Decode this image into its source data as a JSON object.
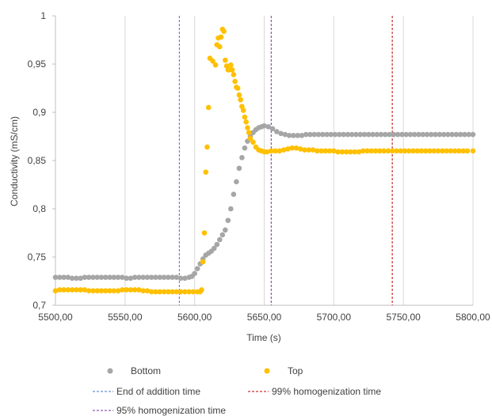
{
  "chart_data": {
    "type": "scatter",
    "title": "",
    "xlabel": "Time (s)",
    "ylabel": "Conductivity (mS/cm)",
    "xlim": [
      5500,
      5800
    ],
    "ylim": [
      0.7,
      1.0
    ],
    "x_ticks": [
      5500,
      5550,
      5600,
      5650,
      5700,
      5750,
      5800
    ],
    "x_tick_labels": [
      "5500,00",
      "5550,00",
      "5600,00",
      "5650,00",
      "5700,00",
      "5750,00",
      "5800,00"
    ],
    "y_ticks": [
      0.7,
      0.75,
      0.8,
      0.85,
      0.9,
      0.95,
      1.0
    ],
    "y_tick_labels": [
      "0,7",
      "0,75",
      "0,8",
      "0,85",
      "0,9",
      "0,95",
      "1"
    ],
    "grid": "vertical",
    "legend_position": "bottom",
    "series": [
      {
        "name": "Bottom",
        "color": "#a6a6a6",
        "points": [
          [
            5500,
            0.729
          ],
          [
            5503,
            0.729
          ],
          [
            5506,
            0.729
          ],
          [
            5509,
            0.729
          ],
          [
            5512,
            0.728
          ],
          [
            5515,
            0.728
          ],
          [
            5518,
            0.728
          ],
          [
            5521,
            0.729
          ],
          [
            5524,
            0.729
          ],
          [
            5527,
            0.729
          ],
          [
            5530,
            0.729
          ],
          [
            5533,
            0.729
          ],
          [
            5536,
            0.729
          ],
          [
            5539,
            0.729
          ],
          [
            5542,
            0.729
          ],
          [
            5545,
            0.729
          ],
          [
            5548,
            0.729
          ],
          [
            5551,
            0.728
          ],
          [
            5554,
            0.728
          ],
          [
            5557,
            0.729
          ],
          [
            5560,
            0.729
          ],
          [
            5563,
            0.729
          ],
          [
            5566,
            0.729
          ],
          [
            5569,
            0.729
          ],
          [
            5572,
            0.729
          ],
          [
            5575,
            0.729
          ],
          [
            5578,
            0.729
          ],
          [
            5581,
            0.729
          ],
          [
            5584,
            0.729
          ],
          [
            5587,
            0.729
          ],
          [
            5590,
            0.728
          ],
          [
            5593,
            0.728
          ],
          [
            5596,
            0.729
          ],
          [
            5598,
            0.73
          ],
          [
            5600,
            0.733
          ],
          [
            5602,
            0.738
          ],
          [
            5604,
            0.743
          ],
          [
            5606,
            0.748
          ],
          [
            5608,
            0.752
          ],
          [
            5610,
            0.754
          ],
          [
            5612,
            0.756
          ],
          [
            5614,
            0.759
          ],
          [
            5616,
            0.763
          ],
          [
            5618,
            0.768
          ],
          [
            5620,
            0.773
          ],
          [
            5622,
            0.778
          ],
          [
            5624,
            0.788
          ],
          [
            5626,
            0.8
          ],
          [
            5628,
            0.815
          ],
          [
            5630,
            0.828
          ],
          [
            5632,
            0.842
          ],
          [
            5634,
            0.853
          ],
          [
            5636,
            0.863
          ],
          [
            5638,
            0.87
          ],
          [
            5640,
            0.875
          ],
          [
            5642,
            0.879
          ],
          [
            5644,
            0.882
          ],
          [
            5646,
            0.884
          ],
          [
            5648,
            0.885
          ],
          [
            5650,
            0.886
          ],
          [
            5653,
            0.885
          ],
          [
            5656,
            0.883
          ],
          [
            5659,
            0.88
          ],
          [
            5662,
            0.878
          ],
          [
            5665,
            0.877
          ],
          [
            5668,
            0.876
          ],
          [
            5671,
            0.876
          ],
          [
            5674,
            0.876
          ],
          [
            5677,
            0.876
          ],
          [
            5680,
            0.877
          ],
          [
            5683,
            0.877
          ],
          [
            5686,
            0.877
          ],
          [
            5689,
            0.877
          ],
          [
            5692,
            0.877
          ],
          [
            5695,
            0.877
          ],
          [
            5698,
            0.877
          ],
          [
            5701,
            0.877
          ],
          [
            5704,
            0.877
          ],
          [
            5707,
            0.877
          ],
          [
            5710,
            0.877
          ],
          [
            5713,
            0.877
          ],
          [
            5716,
            0.877
          ],
          [
            5719,
            0.877
          ],
          [
            5722,
            0.877
          ],
          [
            5725,
            0.877
          ],
          [
            5728,
            0.877
          ],
          [
            5731,
            0.877
          ],
          [
            5734,
            0.877
          ],
          [
            5737,
            0.877
          ],
          [
            5740,
            0.877
          ],
          [
            5743,
            0.877
          ],
          [
            5746,
            0.877
          ],
          [
            5749,
            0.877
          ],
          [
            5752,
            0.877
          ],
          [
            5755,
            0.877
          ],
          [
            5758,
            0.877
          ],
          [
            5761,
            0.877
          ],
          [
            5764,
            0.877
          ],
          [
            5767,
            0.877
          ],
          [
            5770,
            0.877
          ],
          [
            5773,
            0.877
          ],
          [
            5776,
            0.877
          ],
          [
            5779,
            0.877
          ],
          [
            5782,
            0.877
          ],
          [
            5785,
            0.877
          ],
          [
            5788,
            0.877
          ],
          [
            5791,
            0.877
          ],
          [
            5794,
            0.877
          ],
          [
            5797,
            0.877
          ],
          [
            5800,
            0.877
          ]
        ]
      },
      {
        "name": "Top",
        "color": "#ffc000",
        "points": [
          [
            5500,
            0.715
          ],
          [
            5503,
            0.716
          ],
          [
            5506,
            0.716
          ],
          [
            5509,
            0.716
          ],
          [
            5512,
            0.716
          ],
          [
            5515,
            0.716
          ],
          [
            5518,
            0.716
          ],
          [
            5521,
            0.716
          ],
          [
            5524,
            0.715
          ],
          [
            5527,
            0.715
          ],
          [
            5530,
            0.715
          ],
          [
            5533,
            0.715
          ],
          [
            5536,
            0.715
          ],
          [
            5539,
            0.715
          ],
          [
            5542,
            0.715
          ],
          [
            5545,
            0.715
          ],
          [
            5548,
            0.716
          ],
          [
            5551,
            0.716
          ],
          [
            5554,
            0.716
          ],
          [
            5557,
            0.716
          ],
          [
            5560,
            0.716
          ],
          [
            5563,
            0.715
          ],
          [
            5566,
            0.715
          ],
          [
            5569,
            0.714
          ],
          [
            5572,
            0.714
          ],
          [
            5575,
            0.714
          ],
          [
            5578,
            0.714
          ],
          [
            5581,
            0.714
          ],
          [
            5584,
            0.714
          ],
          [
            5587,
            0.714
          ],
          [
            5590,
            0.714
          ],
          [
            5593,
            0.714
          ],
          [
            5596,
            0.714
          ],
          [
            5599,
            0.714
          ],
          [
            5602,
            0.714
          ],
          [
            5604,
            0.714
          ],
          [
            5605,
            0.716
          ],
          [
            5606,
            0.745
          ],
          [
            5607,
            0.775
          ],
          [
            5608,
            0.838
          ],
          [
            5609,
            0.864
          ],
          [
            5610,
            0.905
          ],
          [
            5611,
            0.956
          ],
          [
            5613,
            0.953
          ],
          [
            5615,
            0.949
          ],
          [
            5616,
            0.97
          ],
          [
            5617,
            0.977
          ],
          [
            5618,
            0.968
          ],
          [
            5619,
            0.978
          ],
          [
            5620,
            0.986
          ],
          [
            5621,
            0.984
          ],
          [
            5622,
            0.954
          ],
          [
            5623,
            0.948
          ],
          [
            5624,
            0.944
          ],
          [
            5625,
            0.944
          ],
          [
            5626,
            0.949
          ],
          [
            5627,
            0.944
          ],
          [
            5628,
            0.939
          ],
          [
            5629,
            0.932
          ],
          [
            5630,
            0.926
          ],
          [
            5631,
            0.925
          ],
          [
            5632,
            0.918
          ],
          [
            5633,
            0.913
          ],
          [
            5634,
            0.906
          ],
          [
            5635,
            0.902
          ],
          [
            5636,
            0.895
          ],
          [
            5637,
            0.89
          ],
          [
            5638,
            0.884
          ],
          [
            5639,
            0.879
          ],
          [
            5640,
            0.873
          ],
          [
            5642,
            0.869
          ],
          [
            5644,
            0.864
          ],
          [
            5646,
            0.861
          ],
          [
            5648,
            0.86
          ],
          [
            5650,
            0.859
          ],
          [
            5652,
            0.859
          ],
          [
            5655,
            0.86
          ],
          [
            5658,
            0.86
          ],
          [
            5661,
            0.86
          ],
          [
            5664,
            0.861
          ],
          [
            5667,
            0.862
          ],
          [
            5670,
            0.863
          ],
          [
            5673,
            0.863
          ],
          [
            5676,
            0.862
          ],
          [
            5679,
            0.861
          ],
          [
            5682,
            0.861
          ],
          [
            5685,
            0.861
          ],
          [
            5688,
            0.86
          ],
          [
            5691,
            0.86
          ],
          [
            5694,
            0.86
          ],
          [
            5697,
            0.86
          ],
          [
            5700,
            0.86
          ],
          [
            5703,
            0.859
          ],
          [
            5706,
            0.859
          ],
          [
            5709,
            0.859
          ],
          [
            5712,
            0.859
          ],
          [
            5715,
            0.859
          ],
          [
            5718,
            0.859
          ],
          [
            5721,
            0.86
          ],
          [
            5724,
            0.86
          ],
          [
            5727,
            0.86
          ],
          [
            5730,
            0.86
          ],
          [
            5733,
            0.86
          ],
          [
            5736,
            0.86
          ],
          [
            5739,
            0.86
          ],
          [
            5742,
            0.86
          ],
          [
            5745,
            0.86
          ],
          [
            5748,
            0.86
          ],
          [
            5751,
            0.86
          ],
          [
            5754,
            0.86
          ],
          [
            5757,
            0.86
          ],
          [
            5760,
            0.86
          ],
          [
            5763,
            0.86
          ],
          [
            5766,
            0.86
          ],
          [
            5769,
            0.86
          ],
          [
            5772,
            0.86
          ],
          [
            5775,
            0.86
          ],
          [
            5778,
            0.86
          ],
          [
            5781,
            0.86
          ],
          [
            5784,
            0.86
          ],
          [
            5787,
            0.86
          ],
          [
            5790,
            0.86
          ],
          [
            5793,
            0.86
          ],
          [
            5796,
            0.86
          ],
          [
            5800,
            0.86
          ]
        ]
      }
    ],
    "reference_lines": [
      {
        "name": "End of addition time",
        "x": 5589,
        "color": "#4472c4"
      },
      {
        "name": "99% homogenization time",
        "x": 5742,
        "color": "#c00000"
      },
      {
        "name": "95% homogenization time",
        "x": 5655,
        "color": "#7030a0"
      }
    ]
  }
}
